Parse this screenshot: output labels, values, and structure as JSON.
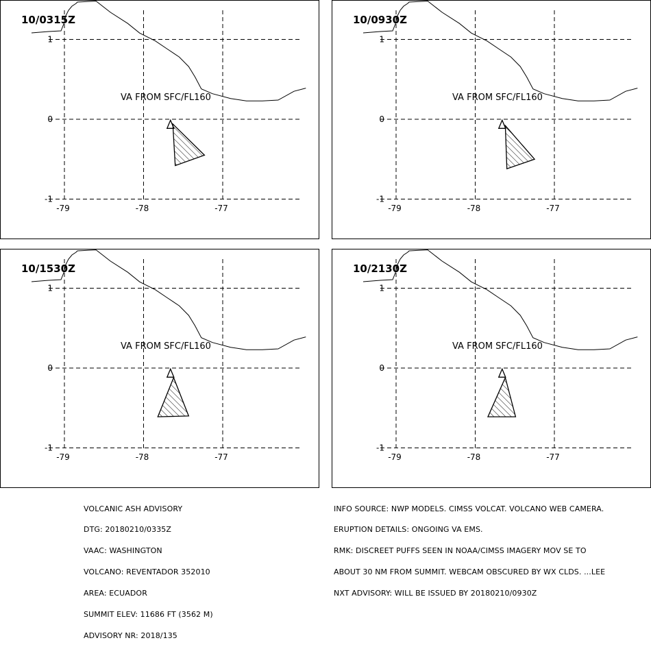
{
  "panels": [
    {
      "time": "10/0315Z",
      "va_label": "VA FROM SFC/FL160",
      "ash_polygon": [
        [
          -77.63,
          -0.06
        ],
        [
          -77.23,
          -0.45
        ],
        [
          -77.6,
          -0.58
        ]
      ]
    },
    {
      "time": "10/0930Z",
      "va_label": "VA FROM SFC/FL160",
      "ash_polygon": [
        [
          -77.62,
          -0.08
        ],
        [
          -77.25,
          -0.5
        ],
        [
          -77.6,
          -0.62
        ]
      ]
    },
    {
      "time": "10/1530Z",
      "va_label": "VA FROM SFC/FL160",
      "ash_polygon": [
        [
          -77.62,
          -0.12
        ],
        [
          -77.43,
          -0.6
        ],
        [
          -77.82,
          -0.61
        ]
      ]
    },
    {
      "time": "10/2130Z",
      "va_label": "VA FROM SFC/FL160",
      "ash_polygon": [
        [
          -77.62,
          -0.12
        ],
        [
          -77.49,
          -0.61
        ],
        [
          -77.84,
          -0.61
        ]
      ]
    }
  ],
  "map": {
    "x_ticks": [
      "-79",
      "-78",
      "-77"
    ],
    "y_ticks": [
      "1",
      "0",
      "-1"
    ],
    "lon_values": [
      -79,
      -78,
      -77
    ],
    "lat_values": [
      1,
      0,
      -1
    ],
    "volcano": {
      "lon": -77.66,
      "lat": -0.08,
      "symbol": "volcano-triangle"
    },
    "coastline": [
      [
        -78.6,
        1.48
      ],
      [
        -78.42,
        1.34
      ],
      [
        -78.2,
        1.2
      ],
      [
        -78.05,
        1.08
      ],
      [
        -77.85,
        0.98
      ],
      [
        -77.7,
        0.88
      ],
      [
        -77.55,
        0.78
      ],
      [
        -77.43,
        0.66
      ],
      [
        -77.35,
        0.53
      ],
      [
        -77.27,
        0.38
      ],
      [
        -77.13,
        0.32
      ],
      [
        -76.9,
        0.26
      ],
      [
        -76.7,
        0.23
      ],
      [
        -76.5,
        0.23
      ],
      [
        -76.3,
        0.24
      ],
      [
        -76.1,
        0.35
      ],
      [
        -75.95,
        0.39
      ]
    ]
  },
  "advisory_left": [
    "VOLCANIC ASH ADVISORY",
    "DTG: 20180210/0335Z",
    "VAAC: WASHINGTON",
    "VOLCANO: REVENTADOR 352010",
    "AREA: ECUADOR",
    "SUMMIT ELEV: 11686 FT (3562 M)",
    "ADVISORY NR: 2018/135"
  ],
  "advisory_right": [
    "INFO SOURCE: NWP MODELS. CIMSS VOLCAT. VOLCANO WEB CAMERA.",
    "ERUPTION DETAILS: ONGOING VA EMS.",
    "RMK: DISCREET PUFFS SEEN IN NOAA/CIMSS IMAGERY MOV SE TO",
    "ABOUT 30 NM FROM SUMMIT. WEBCAM OBSCURED BY WX CLDS. ...LEE",
    "NXT ADVISORY: WILL BE ISSUED BY 20180210/0930Z"
  ]
}
